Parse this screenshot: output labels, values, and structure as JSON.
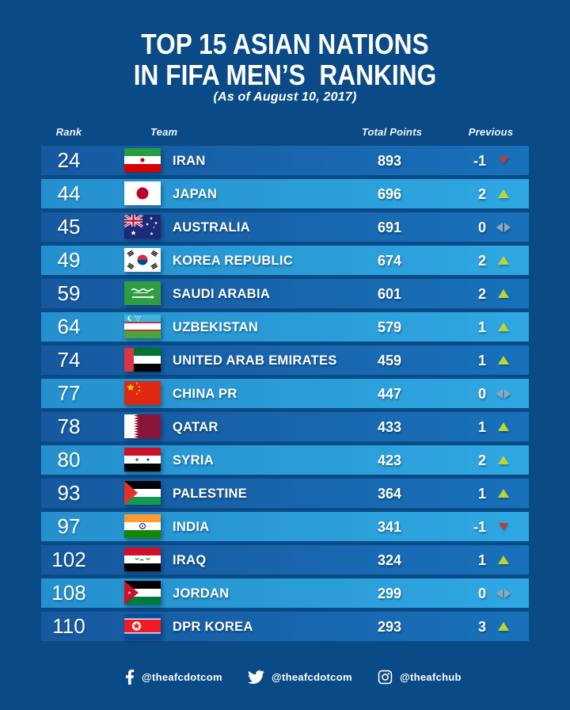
{
  "page": {
    "title_line1": "TOP 15 ASIAN NATIONS",
    "title_line2": "IN FIFA MEN’S  RANKING",
    "subtitle": "(As of August 10, 2017)"
  },
  "table": {
    "headers": {
      "rank": "Rank",
      "team": "Team",
      "points": "Total Points",
      "previous": "Previous"
    },
    "rows": [
      {
        "rank": "24",
        "team": "IRAN",
        "flag": "iran",
        "points": "893",
        "previous": "-1",
        "trend": "down"
      },
      {
        "rank": "44",
        "team": "JAPAN",
        "flag": "japan",
        "points": "696",
        "previous": "2",
        "trend": "up"
      },
      {
        "rank": "45",
        "team": "AUSTRALIA",
        "flag": "australia",
        "points": "691",
        "previous": "0",
        "trend": "same"
      },
      {
        "rank": "49",
        "team": "KOREA REPUBLIC",
        "flag": "korea-republic",
        "points": "674",
        "previous": "2",
        "trend": "up"
      },
      {
        "rank": "59",
        "team": "SAUDI ARABIA",
        "flag": "saudi-arabia",
        "points": "601",
        "previous": "2",
        "trend": "up"
      },
      {
        "rank": "64",
        "team": "UZBEKISTAN",
        "flag": "uzbekistan",
        "points": "579",
        "previous": "1",
        "trend": "up"
      },
      {
        "rank": "74",
        "team": "UNITED ARAB EMIRATES",
        "flag": "uae",
        "points": "459",
        "previous": "1",
        "trend": "up"
      },
      {
        "rank": "77",
        "team": "CHINA PR",
        "flag": "china",
        "points": "447",
        "previous": "0",
        "trend": "same"
      },
      {
        "rank": "78",
        "team": "QATAR",
        "flag": "qatar",
        "points": "433",
        "previous": "1",
        "trend": "up"
      },
      {
        "rank": "80",
        "team": "SYRIA",
        "flag": "syria",
        "points": "423",
        "previous": "2",
        "trend": "up"
      },
      {
        "rank": "93",
        "team": "PALESTINE",
        "flag": "palestine",
        "points": "364",
        "previous": "1",
        "trend": "up"
      },
      {
        "rank": "97",
        "team": "INDIA",
        "flag": "india",
        "points": "341",
        "previous": "-1",
        "trend": "down"
      },
      {
        "rank": "102",
        "team": "IRAQ",
        "flag": "iraq",
        "points": "324",
        "previous": "1",
        "trend": "up"
      },
      {
        "rank": "108",
        "team": "JORDAN",
        "flag": "jordan",
        "points": "299",
        "previous": "0",
        "trend": "same"
      },
      {
        "rank": "110",
        "team": "DPR KOREA",
        "flag": "dpr-korea",
        "points": "293",
        "previous": "3",
        "trend": "up"
      }
    ]
  },
  "footer": {
    "social": [
      {
        "icon": "facebook-icon",
        "handle": "@theafcdotcom"
      },
      {
        "icon": "twitter-icon",
        "handle": "@theafcdotcom"
      },
      {
        "icon": "instagram-icon",
        "handle": "@theafchub"
      }
    ]
  },
  "colors": {
    "background": "#0a4a87",
    "row_dark": "#1768b0",
    "row_light": "#2a9fdc",
    "trend_up": "#bdd62f",
    "trend_down": "#c23a34",
    "trend_same": "#97a6b4",
    "text": "#ffffff"
  },
  "chart_data": {
    "type": "table",
    "title": "TOP 15 ASIAN NATIONS IN FIFA MEN'S RANKING",
    "subtitle": "(As of August 10, 2017)",
    "columns": [
      "Rank",
      "Team",
      "Total Points",
      "Previous"
    ],
    "rows": [
      [
        24,
        "IRAN",
        893,
        -1
      ],
      [
        44,
        "JAPAN",
        696,
        2
      ],
      [
        45,
        "AUSTRALIA",
        691,
        0
      ],
      [
        49,
        "KOREA REPUBLIC",
        674,
        2
      ],
      [
        59,
        "SAUDI ARABIA",
        601,
        2
      ],
      [
        64,
        "UZBEKISTAN",
        579,
        1
      ],
      [
        74,
        "UNITED ARAB EMIRATES",
        459,
        1
      ],
      [
        77,
        "CHINA PR",
        447,
        0
      ],
      [
        78,
        "QATAR",
        433,
        1
      ],
      [
        80,
        "SYRIA",
        423,
        2
      ],
      [
        93,
        "PALESTINE",
        364,
        1
      ],
      [
        97,
        "INDIA",
        341,
        -1
      ],
      [
        102,
        "IRAQ",
        324,
        1
      ],
      [
        108,
        "JORDAN",
        299,
        0
      ],
      [
        110,
        "DPR KOREA",
        293,
        3
      ]
    ]
  }
}
